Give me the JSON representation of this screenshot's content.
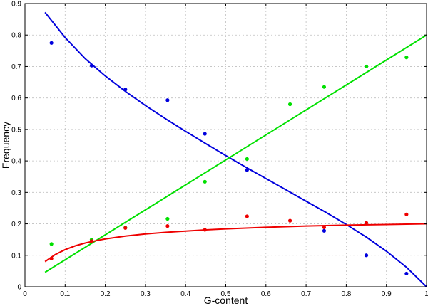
{
  "chart_data": {
    "type": "scatter",
    "xlabel": "G-content",
    "ylabel": "Frequency",
    "xlim": [
      0,
      1
    ],
    "ylim": [
      0,
      0.9
    ],
    "xticks": [
      "0",
      "0.1",
      "0.2",
      "0.3",
      "0.4",
      "0.5",
      "0.6",
      "0.7",
      "0.8",
      "0.9",
      "1"
    ],
    "yticks": [
      "0",
      "0.1",
      "0.2",
      "0.3",
      "0.4",
      "0.5",
      "0.6",
      "0.7",
      "0.8",
      "0.9"
    ],
    "grid": true,
    "series": [
      {
        "color": "#0000dd",
        "points": {
          "x": [
            0.066,
            0.166,
            0.25,
            0.355,
            0.448,
            0.553,
            0.745,
            0.85,
            0.95
          ],
          "y": [
            0.775,
            0.703,
            0.627,
            0.593,
            0.486,
            0.371,
            0.178,
            0.1,
            0.042
          ]
        },
        "fit": {
          "x": [
            0.05,
            0.1,
            0.15,
            0.2,
            0.25,
            0.3,
            0.35,
            0.4,
            0.45,
            0.5,
            0.55,
            0.6,
            0.65,
            0.7,
            0.75,
            0.8,
            0.85,
            0.9,
            0.95,
            1.0
          ],
          "y": [
            0.872,
            0.792,
            0.725,
            0.67,
            0.621,
            0.576,
            0.534,
            0.494,
            0.455,
            0.417,
            0.38,
            0.344,
            0.308,
            0.272,
            0.236,
            0.198,
            0.158,
            0.113,
            0.062,
            0.0
          ]
        }
      },
      {
        "color": "#00e000",
        "points": {
          "x": [
            0.066,
            0.166,
            0.25,
            0.355,
            0.448,
            0.553,
            0.66,
            0.745,
            0.85,
            0.95
          ],
          "y": [
            0.136,
            0.15,
            0.188,
            0.216,
            0.334,
            0.406,
            0.58,
            0.635,
            0.7,
            0.729
          ]
        },
        "fit": {
          "x": [
            0.05,
            1.0
          ],
          "y": [
            0.046,
            0.8
          ]
        }
      },
      {
        "color": "#ee0000",
        "points": {
          "x": [
            0.066,
            0.166,
            0.25,
            0.355,
            0.448,
            0.553,
            0.66,
            0.745,
            0.85,
            0.95
          ],
          "y": [
            0.09,
            0.145,
            0.187,
            0.193,
            0.181,
            0.224,
            0.21,
            0.189,
            0.203,
            0.23
          ]
        },
        "fit": {
          "x": [
            0.05,
            0.075,
            0.1,
            0.125,
            0.15,
            0.175,
            0.2,
            0.25,
            0.3,
            0.35,
            0.4,
            0.45,
            0.5,
            0.6,
            0.7,
            0.8,
            0.9,
            1.0
          ],
          "y": [
            0.08,
            0.102,
            0.118,
            0.13,
            0.139,
            0.146,
            0.152,
            0.161,
            0.168,
            0.173,
            0.177,
            0.181,
            0.184,
            0.189,
            0.193,
            0.196,
            0.198,
            0.2
          ]
        }
      }
    ]
  }
}
